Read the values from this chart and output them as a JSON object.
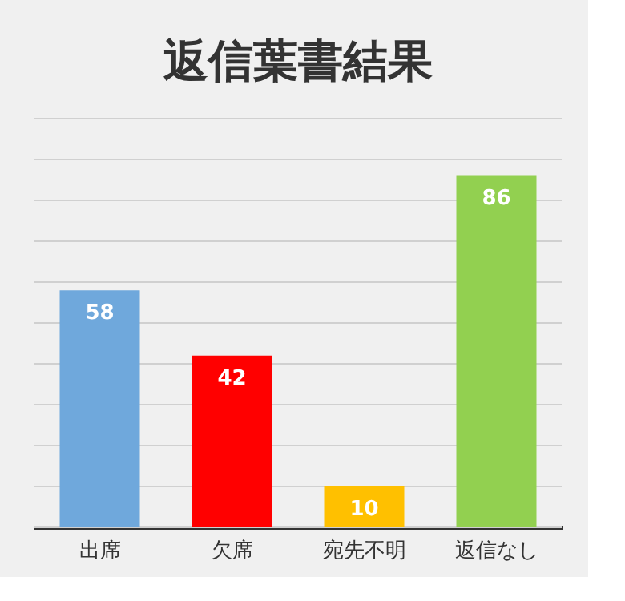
{
  "chart_data": {
    "type": "bar",
    "title": "返信葉書結果",
    "categories": [
      "出席",
      "欠席",
      "宛先不明",
      "返信なし"
    ],
    "values": [
      58,
      42,
      10,
      86
    ],
    "colors": [
      "#6fa8dc",
      "#ff0000",
      "#ffc000",
      "#92d050"
    ],
    "ylim": [
      0,
      100
    ],
    "yticks": [
      {
        "value": 0,
        "label": null
      },
      {
        "value": 10,
        "label": null
      },
      {
        "value": 20,
        "label": null
      },
      {
        "value": 30,
        "label": null
      },
      {
        "value": 40,
        "label": null
      },
      {
        "value": 50,
        "label": null
      },
      {
        "value": 60,
        "label": null
      },
      {
        "value": 70,
        "label": null
      },
      {
        "value": 80,
        "label": null
      },
      {
        "value": 90,
        "label": null
      },
      {
        "value": 100,
        "label": null
      }
    ],
    "tick_labels": "x",
    "grid": "y",
    "data_labels": true
  }
}
